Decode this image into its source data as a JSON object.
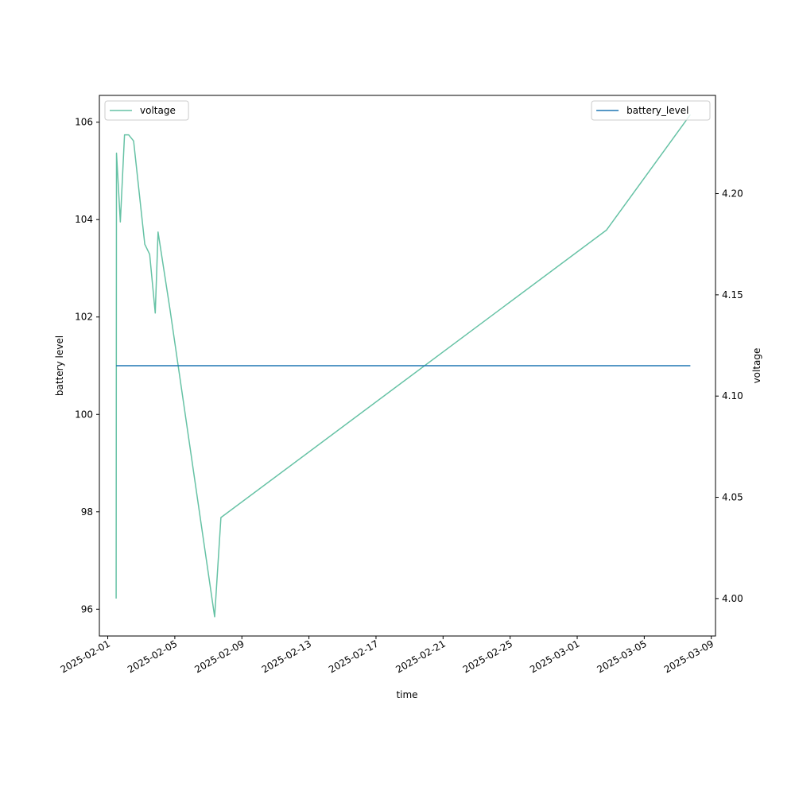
{
  "chart_data": {
    "type": "line",
    "xlabel": "time",
    "ylabel_left": "battery level",
    "ylabel_right": "voltage",
    "x_ticks": [
      "2025-02-01",
      "2025-02-05",
      "2025-02-09",
      "2025-02-13",
      "2025-02-17",
      "2025-02-21",
      "2025-02-25",
      "2025-03-01",
      "2025-03-05",
      "2025-03-09"
    ],
    "x_range": [
      "2025-01-31T12:00",
      "2025-03-09T06:00"
    ],
    "y_left_ticks": [
      "96",
      "98",
      "100",
      "102",
      "104",
      "106"
    ],
    "y_left_range": [
      95.45,
      106.55
    ],
    "y_right_ticks": [
      "4.00",
      "4.05",
      "4.10",
      "4.15",
      "4.20"
    ],
    "y_right_range": [
      3.9815,
      4.2485
    ],
    "series": [
      {
        "name": "voltage",
        "axis": "right",
        "color": "#66c2a5",
        "points": [
          [
            "2025-02-01T12:00",
            4.0
          ],
          [
            "2025-02-01T12:30",
            4.22
          ],
          [
            "2025-02-01T18:00",
            4.186
          ],
          [
            "2025-02-02T00:00",
            4.229
          ],
          [
            "2025-02-02T06:00",
            4.229
          ],
          [
            "2025-02-02T13:00",
            4.226
          ],
          [
            "2025-02-03T05:00",
            4.175
          ],
          [
            "2025-02-03T12:00",
            4.17
          ],
          [
            "2025-02-03T20:00",
            4.141
          ],
          [
            "2025-02-04T00:00",
            4.181
          ],
          [
            "2025-02-04T17:00",
            4.143
          ],
          [
            "2025-02-07T09:00",
            3.991
          ],
          [
            "2025-02-07T18:00",
            4.04
          ],
          [
            "2025-03-02T18:00",
            4.182
          ],
          [
            "2025-03-07T18:00",
            4.239
          ]
        ]
      },
      {
        "name": "battery_level",
        "axis": "left",
        "color": "#1f77b4",
        "points": [
          [
            "2025-02-01T12:00",
            101
          ],
          [
            "2025-03-07T18:00",
            101
          ]
        ]
      }
    ],
    "legends": [
      {
        "position": "top-left",
        "series": [
          "voltage"
        ]
      },
      {
        "position": "top-right",
        "series": [
          "battery_level"
        ]
      }
    ],
    "grid": false
  }
}
